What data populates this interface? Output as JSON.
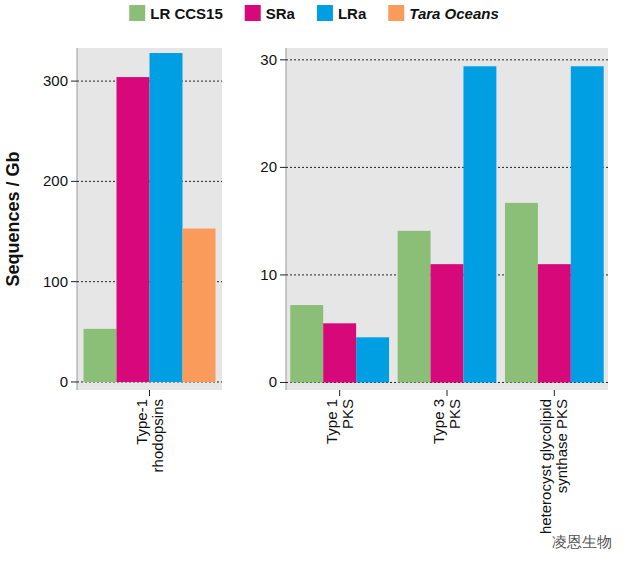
{
  "chart_data": [
    {
      "type": "bar",
      "y_label": "Sequences / Gb",
      "categories": [
        "Type-1\nrhodopsins"
      ],
      "series": [
        {
          "name": "LR CCS15",
          "color": "#8bbf78",
          "values": [
            53
          ]
        },
        {
          "name": "SRa",
          "color": "#d6087a",
          "values": [
            304
          ]
        },
        {
          "name": "LRa",
          "color": "#009fe3",
          "values": [
            328
          ]
        },
        {
          "name": "Tara Oceans",
          "color": "#f89b5b",
          "values": [
            153
          ]
        }
      ],
      "ylim": [
        -8,
        333
      ],
      "yticks": [
        0,
        100,
        200,
        300
      ],
      "grid": true,
      "legend": "top"
    },
    {
      "type": "bar",
      "categories": [
        "Type 1\nPKS",
        "Type 3\nPKS",
        "heterocyst glycolipid\nsynthase PKS"
      ],
      "series": [
        {
          "name": "LR CCS15",
          "color": "#8bbf78",
          "values": [
            7.2,
            14.1,
            16.7
          ]
        },
        {
          "name": "SRa",
          "color": "#d6087a",
          "values": [
            5.5,
            11.0,
            11.0
          ]
        },
        {
          "name": "LRa",
          "color": "#009fe3",
          "values": [
            4.2,
            29.4,
            29.4
          ]
        }
      ],
      "ylim": [
        -0.7,
        31.1
      ],
      "yticks": [
        0,
        10,
        20,
        30
      ],
      "grid": true,
      "annotations": [
        "凌恩生物"
      ]
    }
  ]
}
